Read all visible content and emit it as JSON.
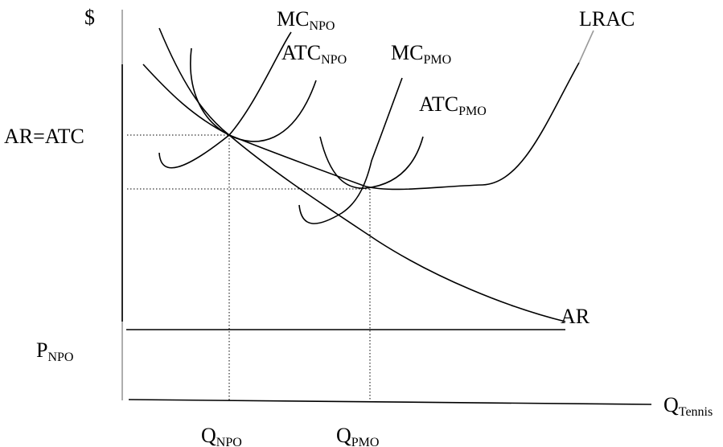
{
  "labels": {
    "y_axis": "$",
    "price_level": "AR=ATC",
    "p_npo": {
      "main": "P",
      "sub": "NPO"
    },
    "q_npo": {
      "main": "Q",
      "sub": "NPO"
    },
    "q_pmo": {
      "main": "Q",
      "sub": "PMO"
    },
    "q_tennis": {
      "main": "Q",
      "sub": "Tennis"
    },
    "mc_npo": {
      "main": "MC",
      "sub": "NPO"
    },
    "atc_npo": {
      "main": "ATC",
      "sub": "NPO"
    },
    "mc_pmo": {
      "main": "MC",
      "sub": "PMO"
    },
    "atc_pmo": {
      "main": "ATC",
      "sub": "PMO"
    },
    "lrac": "LRAC",
    "ar": "AR"
  }
}
